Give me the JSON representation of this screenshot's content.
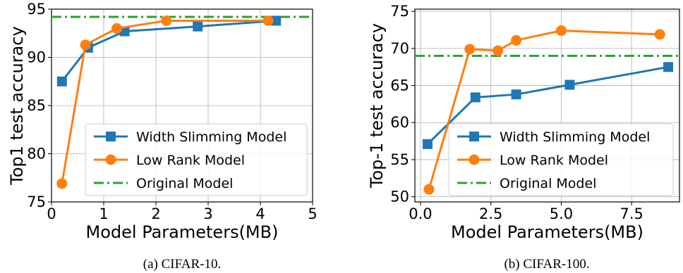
{
  "chart_data": [
    {
      "type": "line",
      "caption": "(a) CIFAR-10.",
      "xlabel": "Model Parameters(MB)",
      "ylabel": "Top1 test accuracy",
      "xlim": [
        0,
        5
      ],
      "ylim": [
        75,
        95
      ],
      "xticks": [
        0,
        1,
        2,
        3,
        4,
        5
      ],
      "xtick_labels": [
        "0",
        "1",
        "2",
        "3",
        "4",
        "5"
      ],
      "yticks": [
        75,
        80,
        85,
        90,
        95
      ],
      "ytick_labels": [
        "75",
        "80",
        "85",
        "90",
        "95"
      ],
      "grid": true,
      "legend_position": "lower-right",
      "series": [
        {
          "name": "Width Slimming Model",
          "color": "#1f77b4",
          "marker": "square",
          "x": [
            0.2,
            0.7,
            1.4,
            2.8,
            4.3
          ],
          "y": [
            87.5,
            91.0,
            92.7,
            93.2,
            93.8
          ]
        },
        {
          "name": "Low Rank Model",
          "color": "#ff7f0e",
          "marker": "circle",
          "x": [
            0.2,
            0.65,
            1.25,
            2.2,
            4.15
          ],
          "y": [
            76.9,
            91.3,
            93.0,
            93.8,
            93.8
          ]
        }
      ],
      "hlines": [
        {
          "name": "Original Model",
          "color": "#2ca02c",
          "y": 94.2,
          "style": "dashdot"
        }
      ]
    },
    {
      "type": "line",
      "caption": "(b) CIFAR-100.",
      "xlabel": "Model Parameters(MB)",
      "ylabel": "Top-1 test accuracy",
      "xlim": [
        -0.2,
        9.2
      ],
      "ylim": [
        49.3,
        75.3
      ],
      "xticks": [
        0,
        2.5,
        5,
        7.5
      ],
      "xtick_labels": [
        "0.0",
        "2.5",
        "5.0",
        "7.5"
      ],
      "yticks": [
        50,
        55,
        60,
        65,
        70,
        75
      ],
      "ytick_labels": [
        "50",
        "55",
        "60",
        "65",
        "70",
        "75"
      ],
      "grid": true,
      "legend_position": "lower-right",
      "series": [
        {
          "name": "Width Slimming Model",
          "color": "#1f77b4",
          "marker": "square",
          "x": [
            0.25,
            1.95,
            3.4,
            5.3,
            8.8
          ],
          "y": [
            57.1,
            63.4,
            63.8,
            65.1,
            67.5
          ]
        },
        {
          "name": "Low Rank Model",
          "color": "#ff7f0e",
          "marker": "circle",
          "x": [
            0.3,
            1.75,
            2.75,
            3.4,
            5.0,
            8.5
          ],
          "y": [
            51.0,
            69.9,
            69.7,
            71.1,
            72.4,
            71.9
          ]
        }
      ],
      "hlines": [
        {
          "name": "Original Model",
          "color": "#2ca02c",
          "y": 69.0,
          "style": "dashdot"
        }
      ]
    }
  ]
}
